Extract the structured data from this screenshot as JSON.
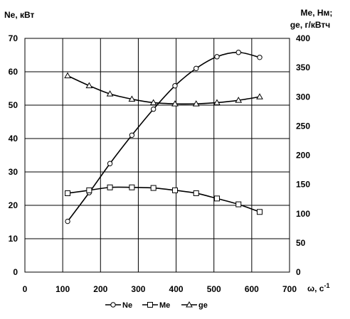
{
  "chart_data": {
    "type": "line",
    "title": "",
    "left_axis": {
      "label": "Ne, кВт",
      "ylim": [
        0,
        70
      ],
      "ticks": [
        "0",
        "10",
        "20",
        "30",
        "40",
        "50",
        "60",
        "70"
      ]
    },
    "right_axis": {
      "label_line1": "Me, Нм;",
      "label_line2": "ge,  г/кВтч",
      "ylim": [
        0,
        400
      ],
      "ticks": [
        "0",
        "50",
        "100",
        "150",
        "200",
        "250",
        "300",
        "350",
        "400"
      ]
    },
    "x_axis": {
      "label": "ω, с",
      "label_sup": "-1",
      "xlim": [
        0,
        700
      ],
      "ticks": [
        "0",
        "100",
        "200",
        "300",
        "400",
        "500",
        "600",
        "700"
      ]
    },
    "grid": true,
    "legend_position": "bottom-center",
    "series": [
      {
        "name": "Ne",
        "axis": "left",
        "marker": "circle",
        "x": [
          113,
          170,
          225,
          283,
          340,
          397,
          453,
          508,
          565,
          621
        ],
        "y": [
          15.2,
          23.8,
          32.5,
          41.0,
          48.8,
          55.8,
          61.0,
          64.5,
          65.8,
          64.3
        ]
      },
      {
        "name": "Me",
        "axis": "right",
        "marker": "square",
        "x": [
          113,
          170,
          225,
          283,
          340,
          397,
          453,
          508,
          565,
          621
        ],
        "y": [
          135,
          140,
          145,
          145,
          144,
          140,
          135,
          126,
          116,
          103
        ]
      },
      {
        "name": "ge",
        "axis": "right",
        "marker": "triangle",
        "x": [
          113,
          170,
          225,
          283,
          340,
          397,
          453,
          508,
          565,
          621
        ],
        "y": [
          336,
          319,
          305,
          296,
          290,
          288,
          288,
          290,
          294,
          300
        ]
      }
    ]
  },
  "colors": {
    "line": "#000000",
    "grid": "#000000",
    "marker_fill": "#ffffff",
    "background": "#ffffff"
  }
}
